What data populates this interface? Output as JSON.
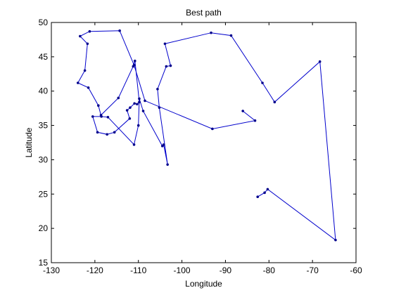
{
  "chart_data": {
    "type": "line",
    "title": "Best path",
    "xlabel": "Longitude",
    "ylabel": "Latitude",
    "xlim": [
      -130,
      -60
    ],
    "ylim": [
      15,
      50
    ],
    "xticks": [
      -130,
      -120,
      -110,
      -100,
      -90,
      -80,
      -70,
      -60
    ],
    "yticks": [
      15,
      20,
      25,
      30,
      35,
      40,
      45,
      50
    ],
    "xtick_labels": [
      "-130",
      "-120",
      "-110",
      "-100",
      "-90",
      "-80",
      "-70",
      "-60"
    ],
    "ytick_labels": [
      "15",
      "20",
      "25",
      "30",
      "35",
      "40",
      "45",
      "50"
    ],
    "grid": false,
    "line_color": "#0000cc",
    "marker_color": "#00008b",
    "points": [
      [
        -86.0,
        37.1
      ],
      [
        -83.2,
        35.7
      ],
      [
        -93.0,
        34.5
      ],
      [
        -108.5,
        38.6
      ],
      [
        -111.0,
        43.8
      ],
      [
        -114.3,
        48.8
      ],
      [
        -121.2,
        48.7
      ],
      [
        -123.4,
        48.0
      ],
      [
        -121.7,
        46.9
      ],
      [
        -122.3,
        43.0
      ],
      [
        -123.9,
        41.2
      ],
      [
        -121.5,
        40.5
      ],
      [
        -119.2,
        37.9
      ],
      [
        -118.6,
        36.5
      ],
      [
        -114.6,
        39.0
      ],
      [
        -111.2,
        43.6
      ],
      [
        -110.8,
        44.4
      ],
      [
        -109.8,
        38.4
      ],
      [
        -110.3,
        38.1
      ],
      [
        -110.9,
        38.2
      ],
      [
        -111.9,
        37.6
      ],
      [
        -112.6,
        37.2
      ],
      [
        -112.0,
        36.0
      ],
      [
        -115.5,
        34.0
      ],
      [
        -117.2,
        33.7
      ],
      [
        -119.4,
        34.0
      ],
      [
        -120.5,
        36.3
      ],
      [
        -118.5,
        36.3
      ],
      [
        -117.0,
        36.2
      ],
      [
        -111.0,
        32.2
      ],
      [
        -110.0,
        35.0
      ],
      [
        -109.8,
        38.9
      ],
      [
        -108.9,
        37.1
      ],
      [
        -104.5,
        32.0
      ],
      [
        -104.2,
        32.2
      ],
      [
        -103.3,
        29.3
      ],
      [
        -105.2,
        37.6
      ],
      [
        -105.6,
        40.3
      ],
      [
        -103.6,
        43.6
      ],
      [
        -102.6,
        43.7
      ],
      [
        -103.9,
        46.9
      ],
      [
        -93.3,
        48.5
      ],
      [
        -88.7,
        48.1
      ],
      [
        -81.5,
        41.2
      ],
      [
        -78.7,
        38.4
      ],
      [
        -68.3,
        44.3
      ],
      [
        -64.7,
        18.3
      ],
      [
        -80.3,
        25.7
      ],
      [
        -81.0,
        25.2
      ],
      [
        -82.6,
        24.6
      ]
    ]
  }
}
